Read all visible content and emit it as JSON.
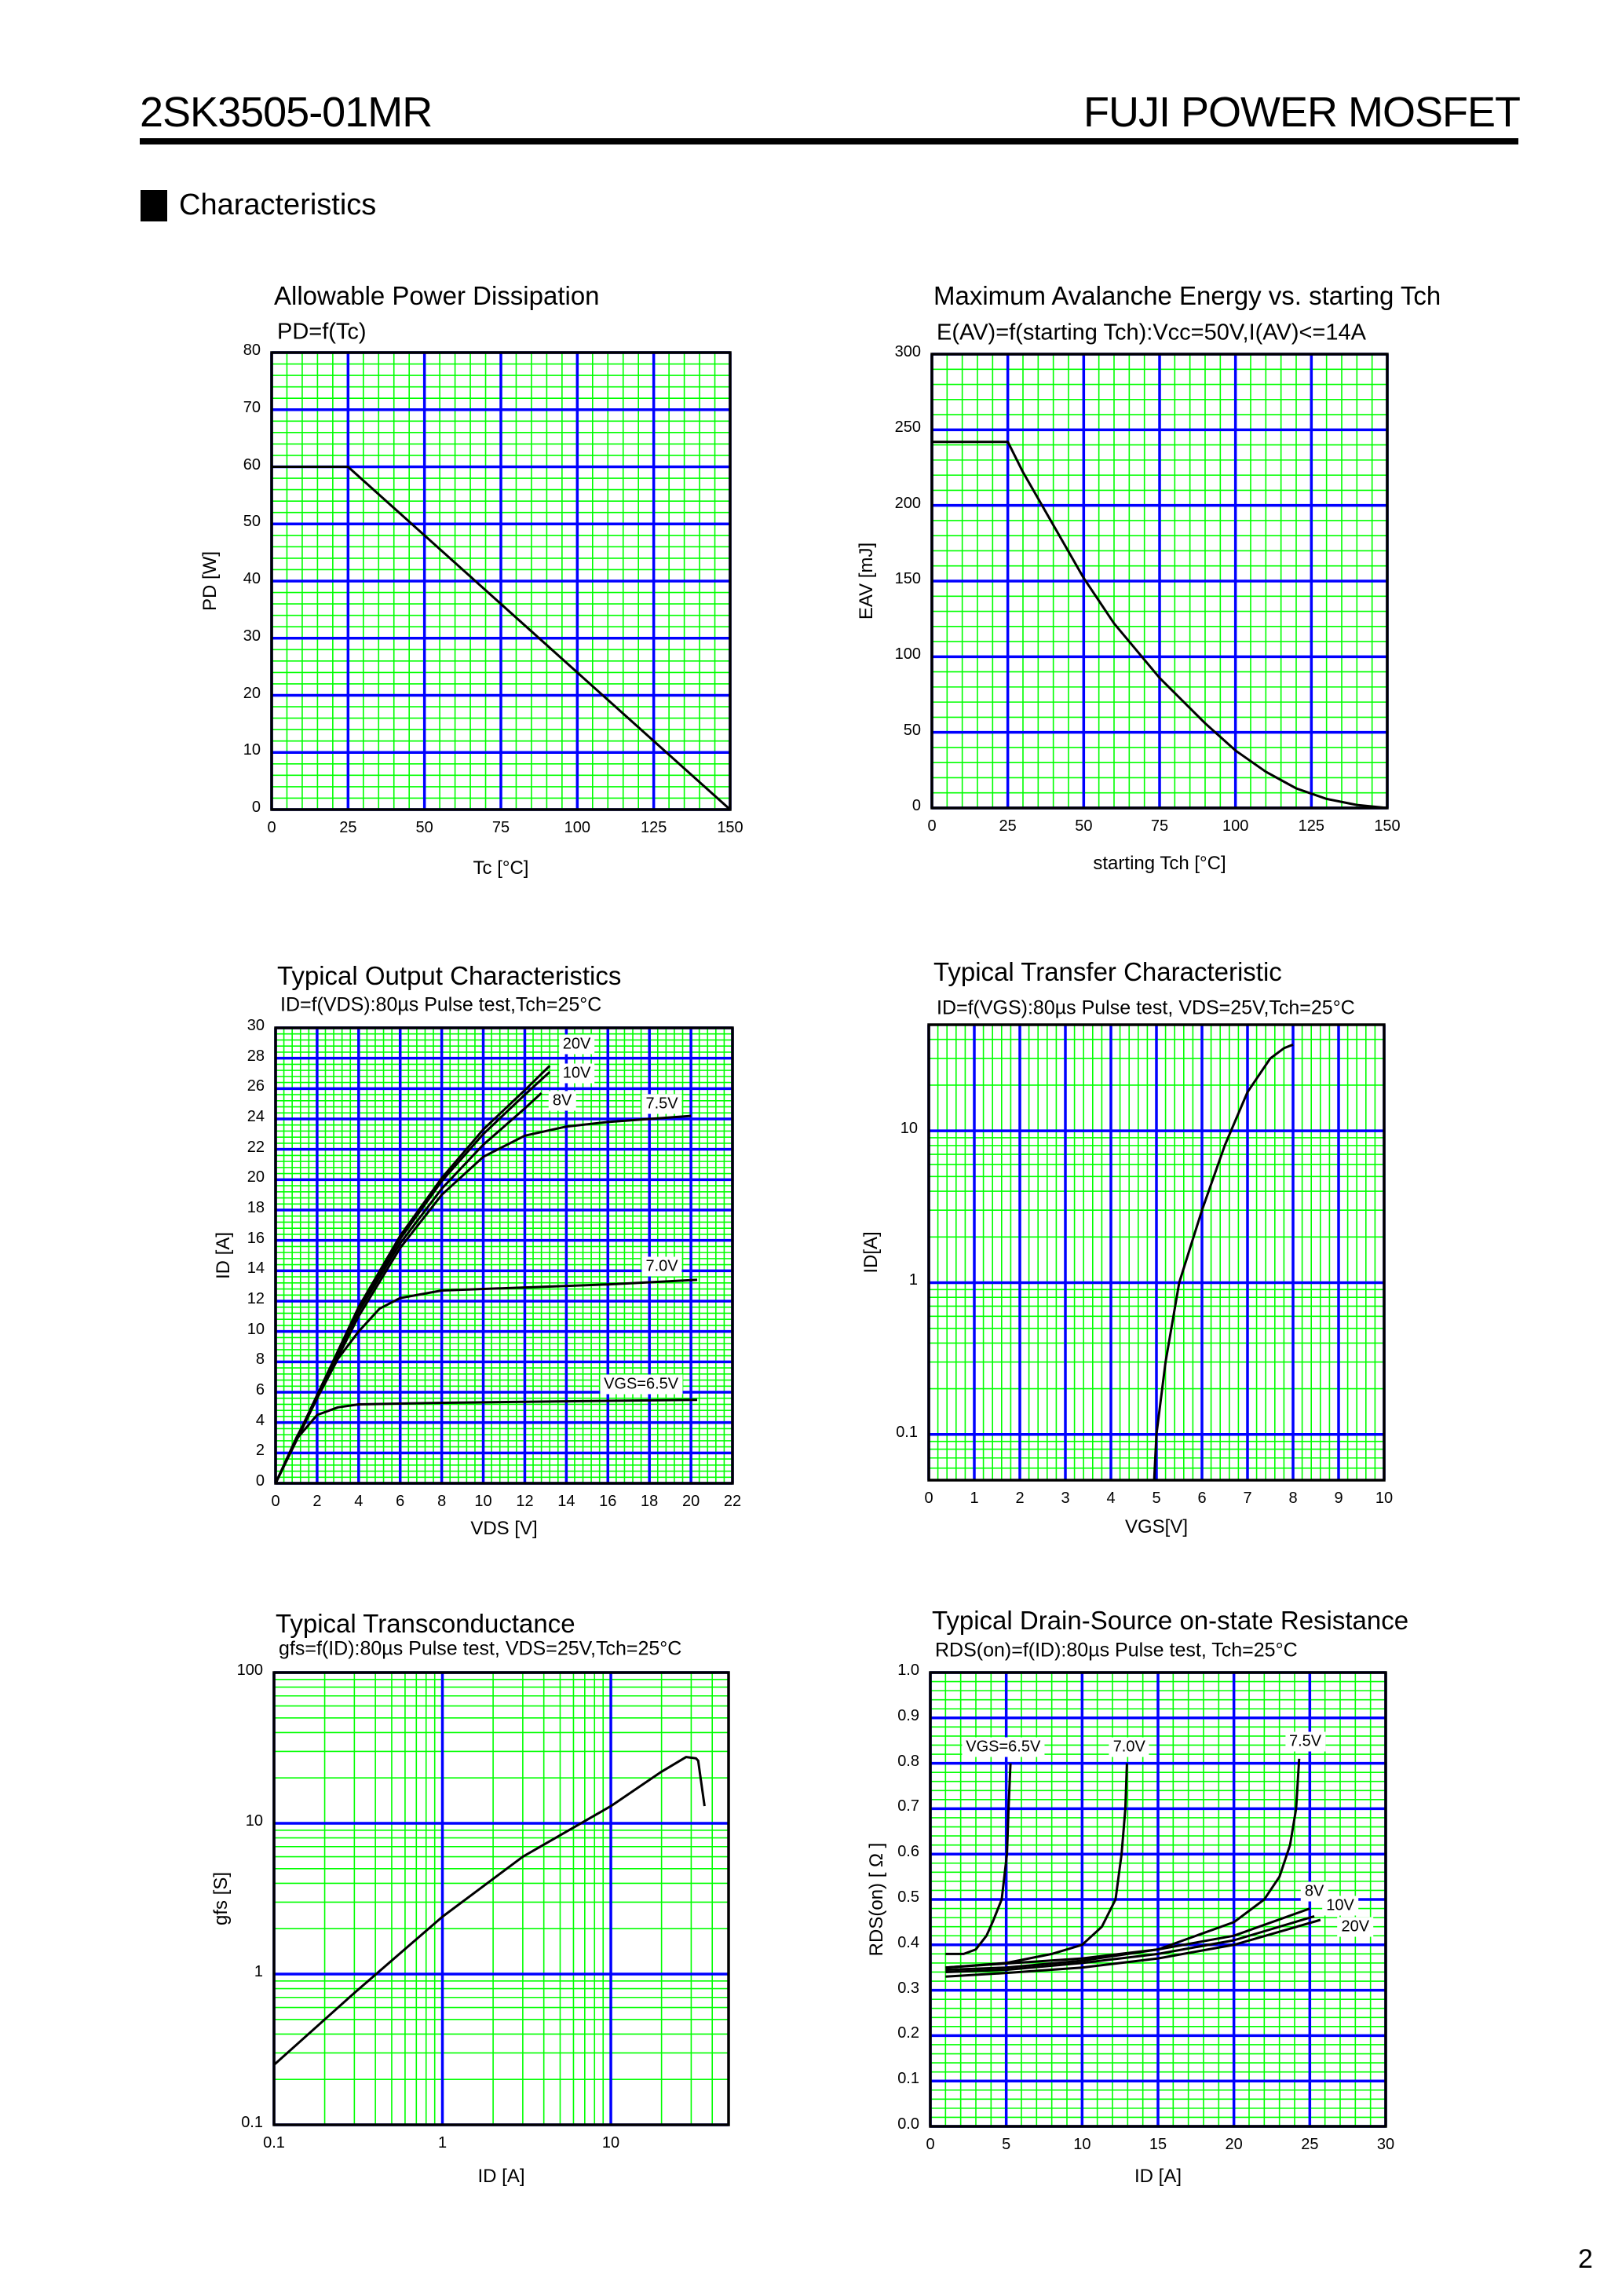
{
  "header": {
    "part_number": "2SK3505-01MR",
    "manufacturer": "FUJI POWER MOSFET"
  },
  "section": {
    "title": "Characteristics"
  },
  "page_number": "2",
  "colors": {
    "major_grid": "#0000ff",
    "minor_grid": "#00ff00",
    "curve": "#000000"
  },
  "chart_data": [
    {
      "type": "line",
      "title": "Allowable Power Dissipation",
      "subtitle": "PD=f(Tc)",
      "xlabel": "Tc [°C]",
      "ylabel": "PD [W]",
      "x_scale": "linear",
      "y_scale": "linear",
      "xlim": [
        0,
        150
      ],
      "ylim": [
        0,
        80
      ],
      "x_major": 25,
      "x_minor": 5,
      "y_major": 10,
      "y_minor": 2,
      "x_ticks": [
        "0",
        "25",
        "50",
        "75",
        "100",
        "125",
        "150"
      ],
      "y_ticks": [
        "0",
        "10",
        "20",
        "30",
        "40",
        "50",
        "60",
        "70",
        "80"
      ],
      "grid": true,
      "series": [
        {
          "points": [
            [
              0,
              60
            ],
            [
              25,
              60
            ],
            [
              150,
              0
            ]
          ]
        }
      ],
      "annotations": []
    },
    {
      "type": "line",
      "title": "Maximum Avalanche Energy vs. starting Tch",
      "subtitle": "E(AV)=f(starting Tch):Vcc=50V,I(AV)<=14A",
      "xlabel": "starting Tch [°C]",
      "ylabel": "EAV [mJ]",
      "x_scale": "linear",
      "y_scale": "linear",
      "xlim": [
        0,
        150
      ],
      "ylim": [
        0,
        300
      ],
      "x_major": 25,
      "x_minor": 5,
      "y_major": 50,
      "y_minor": 10,
      "x_ticks": [
        "0",
        "25",
        "50",
        "75",
        "100",
        "125",
        "150"
      ],
      "y_ticks": [
        "0",
        "50",
        "100",
        "150",
        "200",
        "250",
        "300"
      ],
      "grid": true,
      "series": [
        {
          "points": [
            [
              0,
              242
            ],
            [
              25,
              242
            ],
            [
              30,
              222
            ],
            [
              40,
              187
            ],
            [
              50,
              152
            ],
            [
              60,
              122
            ],
            [
              75,
              86
            ],
            [
              90,
              56
            ],
            [
              100,
              38
            ],
            [
              110,
              24
            ],
            [
              120,
              13
            ],
            [
              130,
              6
            ],
            [
              140,
              2
            ],
            [
              150,
              0
            ]
          ]
        }
      ],
      "annotations": []
    },
    {
      "type": "line",
      "title": "Typical Output Characteristics",
      "subtitle": "ID=f(VDS):80µs Pulse test,Tch=25°C",
      "xlabel": "VDS [V]",
      "ylabel": "ID [A]",
      "x_scale": "linear",
      "y_scale": "linear",
      "xlim": [
        0,
        22
      ],
      "ylim": [
        0,
        30
      ],
      "x_major": 2,
      "x_minor": 0.4,
      "y_major": 2,
      "y_minor": 0.4,
      "x_ticks": [
        "0",
        "2",
        "4",
        "6",
        "8",
        "10",
        "12",
        "14",
        "16",
        "18",
        "20",
        "22"
      ],
      "y_ticks": [
        "0",
        "2",
        "4",
        "6",
        "8",
        "10",
        "12",
        "14",
        "16",
        "18",
        "20",
        "22",
        "24",
        "26",
        "28",
        "30"
      ],
      "grid": true,
      "series": [
        {
          "name": "20V",
          "points": [
            [
              0,
              0
            ],
            [
              2,
              5.8
            ],
            [
              4,
              11.6
            ],
            [
              6,
              16.3
            ],
            [
              8,
              20.1
            ],
            [
              10,
              23.3
            ],
            [
              12,
              25.9
            ],
            [
              13.2,
              27.5
            ]
          ]
        },
        {
          "name": "10V",
          "points": [
            [
              0,
              0
            ],
            [
              2,
              5.8
            ],
            [
              4,
              11.5
            ],
            [
              6,
              16.1
            ],
            [
              8,
              19.9
            ],
            [
              10,
              23.0
            ],
            [
              12,
              25.6
            ],
            [
              13.2,
              27.1
            ]
          ]
        },
        {
          "name": "8V",
          "points": [
            [
              0,
              0
            ],
            [
              2,
              5.7
            ],
            [
              4,
              11.3
            ],
            [
              6,
              15.8
            ],
            [
              8,
              19.4
            ],
            [
              10,
              22.3
            ],
            [
              12,
              24.7
            ],
            [
              12.8,
              25.7
            ]
          ]
        },
        {
          "name": "7.5V",
          "points": [
            [
              0,
              0
            ],
            [
              2,
              5.6
            ],
            [
              4,
              11
            ],
            [
              6,
              15.5
            ],
            [
              8,
              19
            ],
            [
              10,
              21.5
            ],
            [
              12,
              22.9
            ],
            [
              14,
              23.5
            ],
            [
              16,
              23.8
            ],
            [
              18,
              24.0
            ],
            [
              20,
              24.2
            ]
          ]
        },
        {
          "name": "7.0V",
          "points": [
            [
              0,
              0
            ],
            [
              1,
              3
            ],
            [
              2,
              5.6
            ],
            [
              3,
              8.2
            ],
            [
              4,
              10
            ],
            [
              5,
              11.5
            ],
            [
              6,
              12.2
            ],
            [
              8,
              12.7
            ],
            [
              12,
              12.9
            ],
            [
              16,
              13.1
            ],
            [
              20.3,
              13.4
            ]
          ]
        },
        {
          "name": "VGS=6.5V",
          "points": [
            [
              0,
              0
            ],
            [
              1,
              2.9
            ],
            [
              2,
              4.5
            ],
            [
              3,
              5.0
            ],
            [
              4,
              5.2
            ],
            [
              8,
              5.3
            ],
            [
              14,
              5.4
            ],
            [
              20.3,
              5.5
            ]
          ]
        }
      ],
      "annotations": [
        {
          "text": "20V",
          "at": [
            14.5,
            28.9
          ]
        },
        {
          "text": "10V",
          "at": [
            14.5,
            27.0
          ]
        },
        {
          "text": "8V",
          "at": [
            13.8,
            25.2
          ]
        },
        {
          "text": "7.5V",
          "at": [
            18.6,
            25.0
          ]
        },
        {
          "text": "7.0V",
          "at": [
            18.6,
            14.3
          ]
        },
        {
          "text": "VGS=6.5V",
          "at": [
            17.6,
            6.5
          ]
        }
      ]
    },
    {
      "type": "line",
      "title": "Typical Transfer Characteristic",
      "subtitle": "ID=f(VGS):80µs Pulse test, VDS=25V,Tch=25°C",
      "xlabel": "VGS[V]",
      "ylabel": "ID[A]",
      "x_scale": "linear",
      "y_scale": "log",
      "xlim": [
        0,
        10
      ],
      "ylim": [
        0.05,
        50
      ],
      "x_major": 1,
      "x_minor": 0.2,
      "x_ticks": [
        "0",
        "1",
        "2",
        "3",
        "4",
        "5",
        "6",
        "7",
        "8",
        "9",
        "10"
      ],
      "y_ticks": [
        "0.1",
        "1",
        "10"
      ],
      "grid": true,
      "series": [
        {
          "points": [
            [
              4.95,
              0.05
            ],
            [
              5.0,
              0.1
            ],
            [
              5.2,
              0.3
            ],
            [
              5.5,
              1
            ],
            [
              6,
              3
            ],
            [
              6.5,
              8
            ],
            [
              7,
              18
            ],
            [
              7.5,
              30
            ],
            [
              7.8,
              35
            ],
            [
              8,
              37
            ]
          ]
        }
      ],
      "annotations": []
    },
    {
      "type": "line",
      "title": "Typical Transconductance",
      "subtitle": "gfs=f(ID):80µs Pulse test, VDS=25V,Tch=25°C",
      "xlabel": "ID [A]",
      "ylabel": "gfs [S]",
      "x_scale": "log",
      "y_scale": "log",
      "xlim": [
        0.1,
        50
      ],
      "ylim": [
        0.1,
        100
      ],
      "x_ticks": [
        "0.1",
        "1",
        "10"
      ],
      "y_ticks": [
        "0.1",
        "1",
        "10",
        "100"
      ],
      "grid": true,
      "series": [
        {
          "points": [
            [
              0.1,
              0.25
            ],
            [
              0.3,
              0.75
            ],
            [
              1,
              2.4
            ],
            [
              3,
              6
            ],
            [
              10,
              13
            ],
            [
              20,
              22
            ],
            [
              28,
              27.5
            ],
            [
              32,
              27
            ],
            [
              33,
              26
            ],
            [
              36,
              13
            ]
          ]
        }
      ],
      "annotations": []
    },
    {
      "type": "line",
      "title": "Typical Drain-Source on-state Resistance",
      "subtitle": "RDS(on)=f(ID):80µs Pulse test, Tch=25°C",
      "xlabel": "ID [A]",
      "ylabel": "RDS(on) [ Ω ]",
      "x_scale": "linear",
      "y_scale": "linear",
      "xlim": [
        0,
        30
      ],
      "ylim": [
        0,
        1.0
      ],
      "x_major": 5,
      "x_minor": 1,
      "y_major": 0.1,
      "y_minor": 0.02,
      "x_ticks": [
        "0",
        "5",
        "10",
        "15",
        "20",
        "25",
        "30"
      ],
      "y_ticks": [
        "0.0",
        "0.1",
        "0.2",
        "0.3",
        "0.4",
        "0.5",
        "0.6",
        "0.7",
        "0.8",
        "0.9",
        "1.0"
      ],
      "grid": true,
      "series": [
        {
          "name": "VGS=6.5V",
          "points": [
            [
              1,
              0.38
            ],
            [
              2.2,
              0.38
            ],
            [
              3,
              0.39
            ],
            [
              3.7,
              0.42
            ],
            [
              4.1,
              0.45
            ],
            [
              4.7,
              0.5
            ],
            [
              5.05,
              0.6
            ],
            [
              5.15,
              0.7
            ],
            [
              5.28,
              0.8
            ]
          ]
        },
        {
          "name": "7.0V",
          "points": [
            [
              1,
              0.35
            ],
            [
              5,
              0.36
            ],
            [
              8,
              0.38
            ],
            [
              10,
              0.4
            ],
            [
              11.3,
              0.44
            ],
            [
              12.2,
              0.5
            ],
            [
              12.6,
              0.6
            ],
            [
              12.85,
              0.7
            ],
            [
              12.95,
              0.8
            ]
          ]
        },
        {
          "name": "7.5V",
          "points": [
            [
              1,
              0.35
            ],
            [
              10,
              0.37
            ],
            [
              15,
              0.39
            ],
            [
              20,
              0.45
            ],
            [
              22,
              0.5
            ],
            [
              23,
              0.55
            ],
            [
              23.7,
              0.62
            ],
            [
              24.1,
              0.7
            ],
            [
              24.3,
              0.81
            ]
          ]
        },
        {
          "name": "8V",
          "points": [
            [
              1,
              0.345
            ],
            [
              5,
              0.35
            ],
            [
              10,
              0.365
            ],
            [
              15,
              0.39
            ],
            [
              20,
              0.42
            ],
            [
              25,
              0.48
            ]
          ]
        },
        {
          "name": "10V",
          "points": [
            [
              1,
              0.34
            ],
            [
              5,
              0.345
            ],
            [
              10,
              0.36
            ],
            [
              15,
              0.38
            ],
            [
              20,
              0.41
            ],
            [
              25.3,
              0.463
            ]
          ]
        },
        {
          "name": "20V",
          "points": [
            [
              1,
              0.33
            ],
            [
              5,
              0.338
            ],
            [
              10,
              0.35
            ],
            [
              15,
              0.37
            ],
            [
              20,
              0.4
            ],
            [
              25.7,
              0.455
            ]
          ]
        }
      ],
      "annotations": [
        {
          "text": "VGS=6.5V",
          "at": [
            4.8,
            0.835
          ]
        },
        {
          "text": "7.0V",
          "at": [
            13.1,
            0.835
          ]
        },
        {
          "text": "7.5V",
          "at": [
            24.7,
            0.848
          ]
        },
        {
          "text": "8V",
          "at": [
            25.3,
            0.517
          ]
        },
        {
          "text": "10V",
          "at": [
            27.0,
            0.487
          ]
        },
        {
          "text": "20V",
          "at": [
            28.0,
            0.44
          ]
        }
      ]
    }
  ]
}
